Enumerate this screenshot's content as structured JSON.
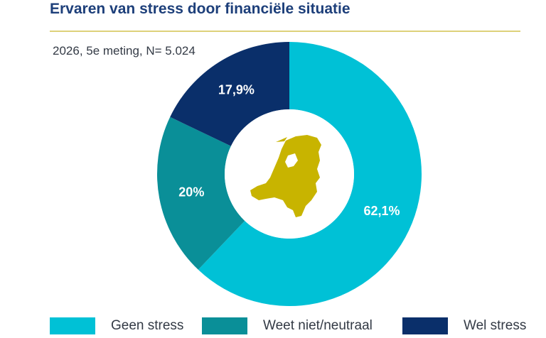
{
  "chart_data": {
    "type": "pie",
    "title": "Ervaren van stress door financiële situatie",
    "subtitle": "2026, 5e meting, N= 5.024",
    "slices": [
      {
        "label": "Geen stress",
        "value": 62.1,
        "value_label": "62,1%",
        "color": "#00c1d6"
      },
      {
        "label": "Weet niet/neutraal",
        "value": 20.0,
        "value_label": "20%",
        "color": "#0a8f98"
      },
      {
        "label": "Wel stress",
        "value": 17.9,
        "value_label": "17,9%",
        "color": "#0a2f6a"
      }
    ],
    "center_icon": "netherlands-map-icon",
    "center_icon_color": "#c8b400",
    "legend_position": "bottom"
  }
}
